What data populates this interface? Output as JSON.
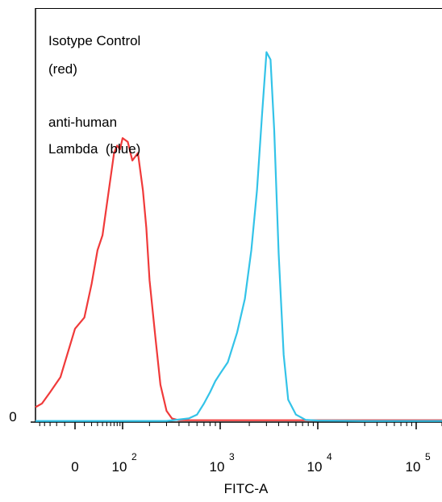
{
  "chart_data": {
    "type": "line",
    "title": "",
    "xlabel": "FITC-A",
    "ylabel": "",
    "x_scale": "biexponential",
    "x_ticks": [
      {
        "value": 0,
        "base": "0",
        "exp": ""
      },
      {
        "value": 100,
        "base": "10",
        "exp": "2"
      },
      {
        "value": 1000,
        "base": "10",
        "exp": "3"
      },
      {
        "value": 10000,
        "base": "10",
        "exp": "4"
      },
      {
        "value": 100000,
        "base": "10",
        "exp": "5"
      }
    ],
    "y_ticks": [
      {
        "value": 0,
        "label": "0"
      }
    ],
    "ylim": [
      0,
      1.0
    ],
    "grid": false,
    "legend": "none",
    "annotations": [
      "Isotype Control",
      "(red)",
      "anti-human",
      "Lambda  (blue)"
    ],
    "series": [
      {
        "color": "#f03a3a",
        "x": [
          -60,
          -45,
          -30,
          -15,
          0,
          10,
          20,
          30,
          40,
          55,
          70,
          80,
          90,
          100,
          115,
          130,
          150,
          170,
          185,
          200,
          230,
          260,
          300,
          340,
          400,
          500,
          700,
          1000,
          1500,
          2500,
          4000,
          6000,
          10000,
          30000,
          100000,
          200000
        ],
        "y": [
          0.04,
          0.05,
          0.08,
          0.12,
          0.25,
          0.28,
          0.37,
          0.46,
          0.5,
          0.62,
          0.72,
          0.74,
          0.73,
          0.76,
          0.75,
          0.7,
          0.72,
          0.62,
          0.52,
          0.38,
          0.23,
          0.1,
          0.03,
          0.01,
          0.005,
          0.005,
          0.005,
          0.005,
          0.005,
          0.005,
          0.005,
          0.005,
          0.005,
          0.005,
          0.005,
          0.005
        ]
      },
      {
        "color": "#33c3e8",
        "x": [
          -60,
          0,
          100,
          300,
          500,
          600,
          700,
          800,
          900,
          1000,
          1200,
          1500,
          1800,
          2100,
          2400,
          2700,
          3000,
          3300,
          3600,
          4000,
          4500,
          5000,
          6000,
          7500,
          10000,
          30000,
          100000,
          200000
        ],
        "y": [
          0.003,
          0.003,
          0.003,
          0.003,
          0.01,
          0.02,
          0.05,
          0.08,
          0.11,
          0.13,
          0.16,
          0.24,
          0.33,
          0.46,
          0.62,
          0.82,
          0.99,
          0.97,
          0.78,
          0.45,
          0.18,
          0.06,
          0.02,
          0.006,
          0.004,
          0.003,
          0.003,
          0.003
        ]
      }
    ]
  }
}
